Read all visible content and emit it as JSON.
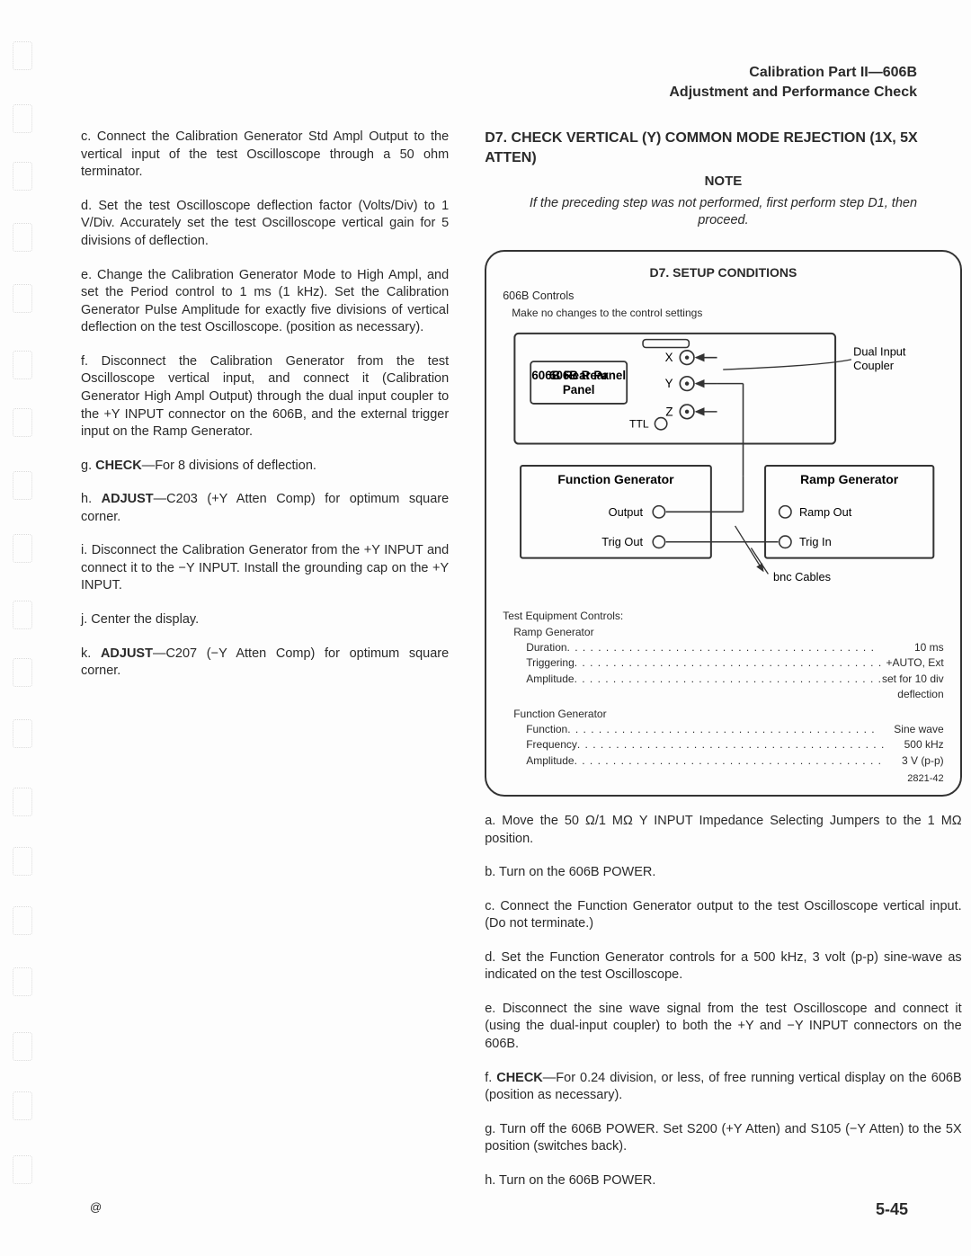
{
  "header": {
    "line1": "Calibration Part II—606B",
    "line2": "Adjustment and Performance Check"
  },
  "left": {
    "p_c": "c. Connect the Calibration Generator Std Ampl Output to the vertical input of the test Oscilloscope through a 50 ohm terminator.",
    "p_d": "d. Set the test Oscilloscope deflection factor (Volts/Div) to 1 V/Div. Accurately set the test Oscilloscope vertical gain for 5 divisions of deflection.",
    "p_e": "e. Change the Calibration Generator Mode to High Ampl, and set the Period control to 1 ms (1 kHz). Set the Calibration Generator Pulse Amplitude for exactly five divisions of vertical deflection on the test Oscilloscope. (position as necessary).",
    "p_f": "f. Disconnect the Calibration Generator from the test Oscilloscope vertical input, and connect it (Calibration Generator High Ampl Output) through the dual input coupler to the +Y INPUT connector on the 606B, and the external trigger input on the Ramp Generator.",
    "p_g_pre": "g. ",
    "p_g_b": "CHECK",
    "p_g_post": "—For 8 divisions of deflection.",
    "p_h_pre": "h. ",
    "p_h_b": "ADJUST",
    "p_h_post": "—C203 (+Y Atten Comp) for optimum square corner.",
    "p_i": "i. Disconnect the Calibration Generator from the +Y INPUT and connect it to the −Y INPUT. Install the grounding cap on the +Y INPUT.",
    "p_j": "j. Center the display.",
    "p_k_pre": "k. ",
    "p_k_b": "ADJUST",
    "p_k_post": "—C207 (−Y Atten Comp) for optimum square corner."
  },
  "right": {
    "title": "D7. CHECK VERTICAL (Y) COMMON MODE REJECTION (1X, 5X ATTEN)",
    "note_label": "NOTE",
    "note_body": "If the preceding step was not performed, first perform step D1, then proceed.",
    "p_a": "a. Move the 50 Ω/1 MΩ Y INPUT Impedance Selecting Jumpers to the 1 MΩ position.",
    "p_b": "b. Turn on the 606B POWER.",
    "p_c": "c. Connect the Function Generator output to the test Oscilloscope vertical input. (Do not terminate.)",
    "p_d": "d. Set the Function Generator controls for a 500 kHz, 3 volt (p-p) sine-wave as indicated on the test Oscilloscope.",
    "p_e": "e. Disconnect the sine wave signal from the test Oscilloscope and connect it (using the dual-input coupler) to both the +Y and −Y INPUT connectors on the 606B.",
    "p_f_pre": "f. ",
    "p_f_b": "CHECK",
    "p_f_post": "—For 0.24 division, or less, of free running vertical display on the 606B (position as necessary).",
    "p_g": "g. Turn off the 606B POWER. Set S200 (+Y Atten) and S105 (−Y Atten) to the 5X position (switches back).",
    "p_h": "h. Turn on the 606B POWER."
  },
  "diagram": {
    "title": "D7. SETUP CONDITIONS",
    "controls_line1": "606B Controls",
    "controls_line2": "Make no changes to the control settings",
    "panel_label": "606B Rear Panel",
    "x_label": "X",
    "y_label": "Y",
    "z_label": "Z",
    "ttl_label": "TTL",
    "coupler_label": "Dual Input Coupler",
    "func_gen": "Function Generator",
    "ramp_gen": "Ramp Generator",
    "output_label": "Output",
    "trig_out_label": "Trig Out",
    "ramp_out_label": "Ramp Out",
    "trig_in_label": "Trig In",
    "bnc_label": "bnc Cables",
    "test_equip": "Test Equipment Controls:",
    "ramp_hdr": "Ramp Generator",
    "func_hdr": "Function Generator",
    "settings": {
      "ramp": [
        {
          "label": "Duration",
          "value": "10 ms"
        },
        {
          "label": "Triggering",
          "value": "+AUTO, Ext"
        },
        {
          "label": "Amplitude",
          "value": "set for 10 div deflection"
        }
      ],
      "func": [
        {
          "label": "Function",
          "value": "Sine wave"
        },
        {
          "label": "Frequency",
          "value": "500 kHz"
        },
        {
          "label": "Amplitude",
          "value": "3 V (p-p)"
        }
      ]
    },
    "figno": "2821-42"
  },
  "footer": {
    "page": "5-45",
    "copyright": "@"
  },
  "punch_positions": [
    46,
    116,
    180,
    248,
    316,
    390,
    454,
    524,
    594,
    668,
    732,
    800,
    876,
    942,
    1008,
    1076,
    1148,
    1214,
    1285
  ]
}
